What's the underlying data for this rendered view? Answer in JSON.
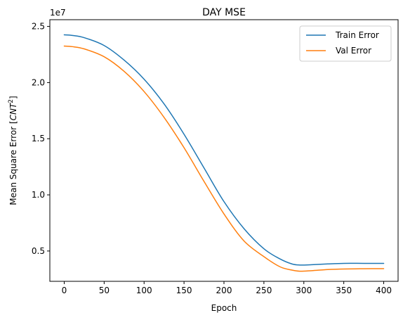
{
  "chart_data": {
    "type": "line",
    "title": "DAY MSE",
    "xlabel": "Epoch",
    "ylabel_main": "Mean Square Error [",
    "ylabel_sym": "CNT",
    "ylabel_sup": "2",
    "ylabel_close": "]",
    "y_multiplier": "1e7",
    "xlim": [
      -18,
      418
    ],
    "ylim": [
      0.23,
      2.56
    ],
    "xticks": [
      0,
      50,
      100,
      150,
      200,
      250,
      300,
      350,
      400
    ],
    "xtick_labels": [
      "0",
      "50",
      "100",
      "150",
      "200",
      "250",
      "300",
      "350",
      "400"
    ],
    "yticks": [
      0.5,
      1.0,
      1.5,
      2.0,
      2.5
    ],
    "ytick_labels": [
      "0.5",
      "1.0",
      "1.5",
      "2.0",
      "2.5"
    ],
    "legend_position": "top-right",
    "grid": false,
    "series": [
      {
        "name": "Train Error",
        "color": "#1f77b4",
        "x": [
          0,
          10,
          25,
          50,
          75,
          100,
          125,
          150,
          175,
          200,
          225,
          250,
          270,
          285,
          295,
          310,
          330,
          350,
          375,
          400
        ],
        "y": [
          2.425,
          2.42,
          2.4,
          2.33,
          2.2,
          2.03,
          1.81,
          1.54,
          1.24,
          0.94,
          0.7,
          0.52,
          0.43,
          0.385,
          0.375,
          0.378,
          0.385,
          0.39,
          0.39,
          0.39
        ]
      },
      {
        "name": "Val Error",
        "color": "#ff7f0e",
        "x": [
          0,
          10,
          25,
          50,
          75,
          100,
          125,
          150,
          175,
          200,
          225,
          250,
          270,
          285,
          295,
          310,
          330,
          350,
          375,
          400
        ],
        "y": [
          2.325,
          2.32,
          2.3,
          2.23,
          2.1,
          1.92,
          1.69,
          1.42,
          1.12,
          0.83,
          0.59,
          0.45,
          0.36,
          0.33,
          0.32,
          0.325,
          0.335,
          0.34,
          0.342,
          0.343
        ]
      }
    ]
  }
}
